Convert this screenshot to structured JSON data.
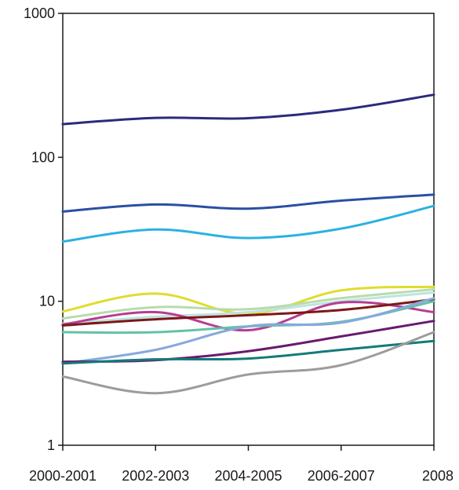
{
  "chart_data": {
    "type": "line",
    "title": "",
    "xlabel": "",
    "ylabel": "",
    "y_scale": "log",
    "ylim": [
      1,
      1000
    ],
    "grid": false,
    "legend": "none",
    "x_ticks": [
      "2000-2001",
      "2002-2003",
      "2004-2005",
      "2006-2007",
      "2008"
    ],
    "y_ticks": [
      "1",
      "10",
      "100",
      "1000"
    ],
    "series": [
      {
        "color": "#2c2a7c",
        "values": [
          170,
          188,
          187,
          214,
          272
        ]
      },
      {
        "color": "#2a4fa3",
        "values": [
          42,
          47,
          44,
          50,
          55
        ]
      },
      {
        "color": "#2db1e0",
        "values": [
          26,
          31.5,
          27.5,
          32,
          46
        ]
      },
      {
        "color": "#dedd2e",
        "values": [
          8.5,
          11.3,
          8.2,
          11.9,
          12.6
        ]
      },
      {
        "color": "#b7dcab",
        "values": [
          7.6,
          9.1,
          8.8,
          10.5,
          12.1
        ]
      },
      {
        "color": "#bfe3df",
        "values": [
          7.0,
          7.8,
          8.4,
          10.0,
          11.5
        ]
      },
      {
        "color": "#b63d92",
        "values": [
          6.9,
          8.4,
          6.3,
          9.8,
          8.4
        ]
      },
      {
        "color": "#7d1719",
        "values": [
          6.8,
          7.5,
          8.0,
          8.7,
          10.3
        ]
      },
      {
        "color": "#62c2a6",
        "values": [
          6.1,
          6.1,
          6.7,
          7.2,
          10.0
        ]
      },
      {
        "color": "#86a9dc",
        "values": [
          3.7,
          4.6,
          6.7,
          7.1,
          10.5
        ]
      },
      {
        "color": "#6a1a6e",
        "values": [
          3.8,
          3.9,
          4.5,
          5.7,
          7.3
        ]
      },
      {
        "color": "#137b79",
        "values": [
          3.7,
          3.95,
          4.0,
          4.6,
          5.3
        ]
      },
      {
        "color": "#9c9c9c",
        "values": [
          3.0,
          2.3,
          3.1,
          3.6,
          6.1
        ]
      }
    ]
  }
}
